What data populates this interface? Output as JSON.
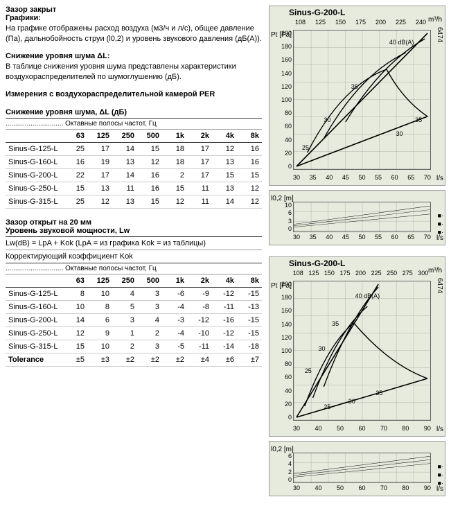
{
  "headers": {
    "gap_closed": "Зазор закрыт",
    "graphics": "Графики:",
    "graphics_text": "На графике отображены расход воздуха (м3/ч и л/с), общее давление (Па), дальнобойность струи (l0,2) и уровень звукового давления (дБ(А)).",
    "noise_red": "Снижение уровня шума ΔL:",
    "noise_red_text": "В таблице снижения уровня шума представлены характеристики воздухораспределителей по шумоглушению (дБ).",
    "meas_per": "Измерения с воздухораспределительной камерой PER",
    "table1_title": "Снижение уровня шума, ΔL (дБ)",
    "octave_band": "Октавные полосы частот, Гц",
    "gap_open": "Зазор открыт на 20 мм",
    "lw_title": "Уровень звуковой мощности, Lw",
    "lw_formula": "Lw(dB) = LpA + Kok (LpA = из графика Kok = из таблицы)",
    "kok": "Корректирующий коэффициент Kok",
    "tolerance": "Tolerance"
  },
  "freq_cols": [
    "63",
    "125",
    "250",
    "500",
    "1k",
    "2k",
    "4k",
    "8k"
  ],
  "table1_rows": [
    {
      "name": "Sinus-G-125-L",
      "v": [
        "25",
        "17",
        "14",
        "15",
        "18",
        "17",
        "12",
        "16"
      ]
    },
    {
      "name": "Sinus-G-160-L",
      "v": [
        "16",
        "19",
        "13",
        "12",
        "18",
        "17",
        "13",
        "16"
      ]
    },
    {
      "name": "Sinus-G-200-L",
      "v": [
        "22",
        "17",
        "14",
        "16",
        "2",
        "17",
        "15",
        "15"
      ]
    },
    {
      "name": "Sinus-G-250-L",
      "v": [
        "15",
        "13",
        "11",
        "16",
        "15",
        "11",
        "13",
        "12"
      ]
    },
    {
      "name": "Sinus-G-315-L",
      "v": [
        "25",
        "12",
        "13",
        "15",
        "12",
        "11",
        "14",
        "12"
      ]
    }
  ],
  "table2_rows": [
    {
      "name": "Sinus-G-125-L",
      "v": [
        "8",
        "10",
        "4",
        "3",
        "-6",
        "-9",
        "-12",
        "-15"
      ]
    },
    {
      "name": "Sinus-G-160-L",
      "v": [
        "10",
        "8",
        "5",
        "3",
        "-4",
        "-8",
        "-11",
        "-13"
      ]
    },
    {
      "name": "Sinus-G-200-L",
      "v": [
        "14",
        "6",
        "3",
        "4",
        "-3",
        "-12",
        "-16",
        "-15"
      ]
    },
    {
      "name": "Sinus-G-250-L",
      "v": [
        "12",
        "9",
        "1",
        "2",
        "-4",
        "-10",
        "-12",
        "-15"
      ]
    },
    {
      "name": "Sinus-G-315-L",
      "v": [
        "15",
        "10",
        "2",
        "3",
        "-5",
        "-11",
        "-14",
        "-18"
      ]
    }
  ],
  "tolerance_row": [
    "±5",
    "±3",
    "±2",
    "±2",
    "±2",
    "±4",
    "±6",
    "±7"
  ],
  "chart1": {
    "title": "Sinus-G-200-L",
    "top_axis": [
      "108",
      "125",
      "150",
      "175",
      "200",
      "225",
      "240"
    ],
    "top_unit": "m³/h",
    "side_label": "6474",
    "ylabel": "Pt [Pa]",
    "y_ticks": [
      "0",
      "20",
      "40",
      "60",
      "80",
      "100",
      "120",
      "140",
      "160",
      "180",
      "200"
    ],
    "x_ticks": [
      "30",
      "35",
      "40",
      "45",
      "50",
      "55",
      "60",
      "65",
      "70"
    ],
    "x_unit": "l/s",
    "db_label": "40 dB(A)",
    "mini_ylabel": "l0,2 [m]",
    "mini_y_ticks": [
      "0",
      "3",
      "6",
      "10"
    ],
    "curve_labels": [
      "25",
      "30",
      "35",
      "35"
    ],
    "chart_bg": "#e7ebde",
    "grid_color": "#9aa094"
  },
  "chart2": {
    "title": "Sinus-G-200-L",
    "top_axis": [
      "108",
      "125",
      "150",
      "175",
      "200",
      "225",
      "250",
      "275",
      "300"
    ],
    "top_unit": "m³/h",
    "side_label": "6474",
    "ylabel": "Pt [Pa]",
    "y_ticks": [
      "0",
      "20",
      "40",
      "60",
      "80",
      "100",
      "120",
      "140",
      "160",
      "180",
      "200"
    ],
    "x_ticks": [
      "30",
      "40",
      "50",
      "60",
      "70",
      "80",
      "90"
    ],
    "x_unit": "l/s",
    "db_label": "40 dB(A)",
    "mini_ylabel": "l0,2 [m]",
    "mini_y_ticks": [
      "0",
      "2",
      "4",
      "6"
    ],
    "curve_labels": [
      "25",
      "30",
      "35"
    ],
    "chart_bg": "#e7ebde",
    "grid_color": "#9aa094"
  }
}
